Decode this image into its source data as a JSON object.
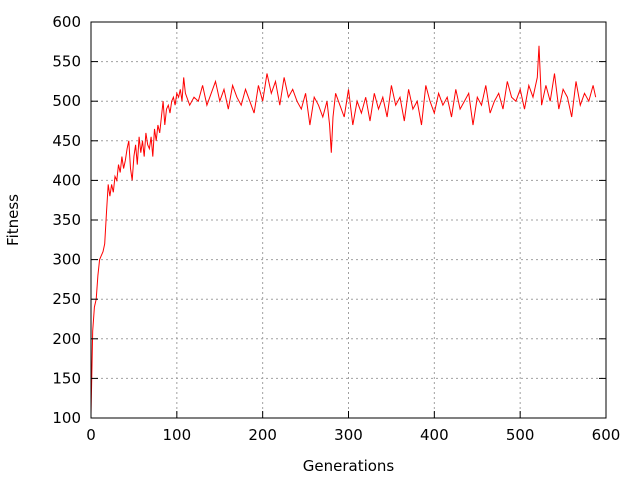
{
  "chart_data": {
    "type": "line",
    "title": "",
    "xlabel": "Generations",
    "ylabel": "Fitness",
    "xlim": [
      0,
      600
    ],
    "ylim": [
      100,
      600
    ],
    "xticks": [
      0,
      100,
      200,
      300,
      400,
      500,
      600
    ],
    "yticks": [
      100,
      150,
      200,
      250,
      300,
      350,
      400,
      450,
      500,
      550,
      600
    ],
    "grid": true,
    "legend": "none",
    "series": [
      {
        "color": "#ff0000",
        "x": [
          0,
          2,
          4,
          6,
          8,
          10,
          12,
          14,
          16,
          18,
          20,
          22,
          24,
          26,
          28,
          30,
          32,
          34,
          36,
          38,
          40,
          42,
          44,
          46,
          48,
          50,
          52,
          54,
          56,
          58,
          60,
          62,
          64,
          66,
          68,
          70,
          72,
          74,
          76,
          78,
          80,
          82,
          84,
          86,
          88,
          90,
          92,
          94,
          96,
          98,
          100,
          102,
          104,
          106,
          108,
          110,
          115,
          120,
          125,
          130,
          135,
          140,
          145,
          150,
          155,
          160,
          165,
          170,
          175,
          180,
          185,
          190,
          195,
          200,
          205,
          210,
          215,
          220,
          225,
          230,
          235,
          240,
          245,
          250,
          255,
          260,
          265,
          270,
          275,
          278,
          280,
          282,
          285,
          290,
          295,
          300,
          305,
          310,
          315,
          320,
          325,
          330,
          335,
          340,
          345,
          350,
          355,
          360,
          365,
          370,
          375,
          380,
          385,
          390,
          395,
          400,
          405,
          410,
          415,
          420,
          425,
          430,
          435,
          440,
          445,
          450,
          455,
          460,
          465,
          470,
          475,
          480,
          485,
          490,
          495,
          500,
          505,
          510,
          515,
          520,
          522,
          525,
          530,
          535,
          540,
          545,
          550,
          555,
          560,
          565,
          570,
          575,
          580,
          585,
          588
        ],
        "y": [
          105,
          210,
          240,
          250,
          280,
          300,
          305,
          310,
          320,
          360,
          395,
          380,
          395,
          385,
          405,
          400,
          420,
          410,
          430,
          415,
          425,
          440,
          450,
          415,
          400,
          430,
          445,
          420,
          455,
          435,
          450,
          430,
          460,
          445,
          440,
          455,
          430,
          465,
          450,
          470,
          460,
          480,
          500,
          470,
          490,
          495,
          485,
          500,
          505,
          495,
          510,
          505,
          515,
          500,
          530,
          510,
          495,
          505,
          500,
          520,
          495,
          510,
          525,
          500,
          515,
          490,
          520,
          505,
          495,
          515,
          500,
          485,
          520,
          500,
          535,
          510,
          525,
          495,
          530,
          505,
          515,
          500,
          490,
          510,
          470,
          505,
          495,
          480,
          500,
          470,
          435,
          480,
          510,
          495,
          480,
          515,
          470,
          500,
          485,
          505,
          475,
          510,
          490,
          505,
          480,
          520,
          495,
          505,
          475,
          515,
          490,
          500,
          470,
          520,
          500,
          485,
          510,
          495,
          505,
          480,
          515,
          490,
          500,
          510,
          470,
          505,
          495,
          520,
          485,
          500,
          510,
          490,
          525,
          505,
          500,
          515,
          490,
          520,
          505,
          530,
          570,
          495,
          520,
          500,
          535,
          490,
          515,
          505,
          480,
          525,
          495,
          510,
          500,
          520,
          505
        ]
      }
    ]
  }
}
